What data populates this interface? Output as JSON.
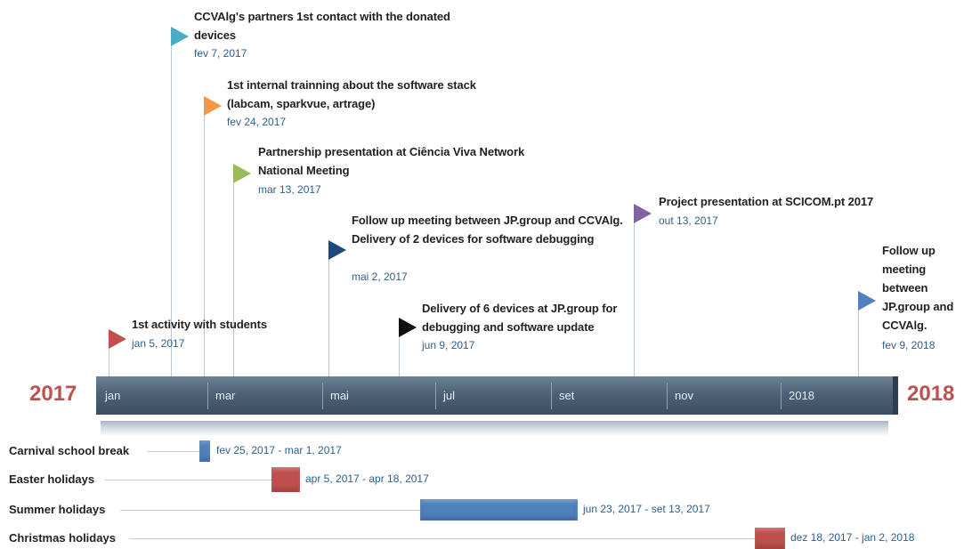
{
  "timeline": {
    "start_year_label": "2017",
    "end_year_label": "2018",
    "months": [
      "jan",
      "mar",
      "mai",
      "jul",
      "set",
      "nov",
      "2018"
    ]
  },
  "milestones": [
    {
      "title": "CCVAlg's partners 1st contact with the donated devices",
      "date": "fev 7, 2017",
      "color": "#4bacc6"
    },
    {
      "title": "1st internal trainning about the software stack (labcam, sparkvue, artrage)",
      "date": "fev 24, 2017",
      "color": "#f79646"
    },
    {
      "title": "Partnership presentation at Ciência Viva Network National Meeting",
      "date": "mar 13, 2017",
      "color": "#9bbb59"
    },
    {
      "title": "Follow up meeting between JP.group and CCVAlg. Delivery of 2 devices for software debugging",
      "date": "mai 2, 2017",
      "color": "#1f497d"
    },
    {
      "title": "1st activity with students",
      "date": "jan 5, 2017",
      "color": "#c0504d"
    },
    {
      "title": "Delivery of 6 devices at JP.group for debugging and software update",
      "date": "jun 9, 2017",
      "color": "#111111"
    },
    {
      "title": "Project presentation at SCICOM.pt 2017",
      "date": "out 13, 2017",
      "color": "#8064a2"
    },
    {
      "title": "Follow up meeting between JP.group and CCVAlg.",
      "date": "fev 9, 2018",
      "color": "#4f81bd"
    }
  ],
  "periods": [
    {
      "label": "Carnival school break",
      "range": "fev 25, 2017 - mar 1, 2017",
      "color": "#4f81bd"
    },
    {
      "label": "Easter holidays",
      "range": "apr 5, 2017 - apr 18, 2017",
      "color": "#c0504d"
    },
    {
      "label": "Summer holidays",
      "range": "jun 23, 2017 - set 13, 2017",
      "color": "#4f81bd"
    },
    {
      "label": "Christmas holidays",
      "range": "dez 18, 2017 - jan 2, 2018",
      "color": "#c0504d"
    }
  ]
}
